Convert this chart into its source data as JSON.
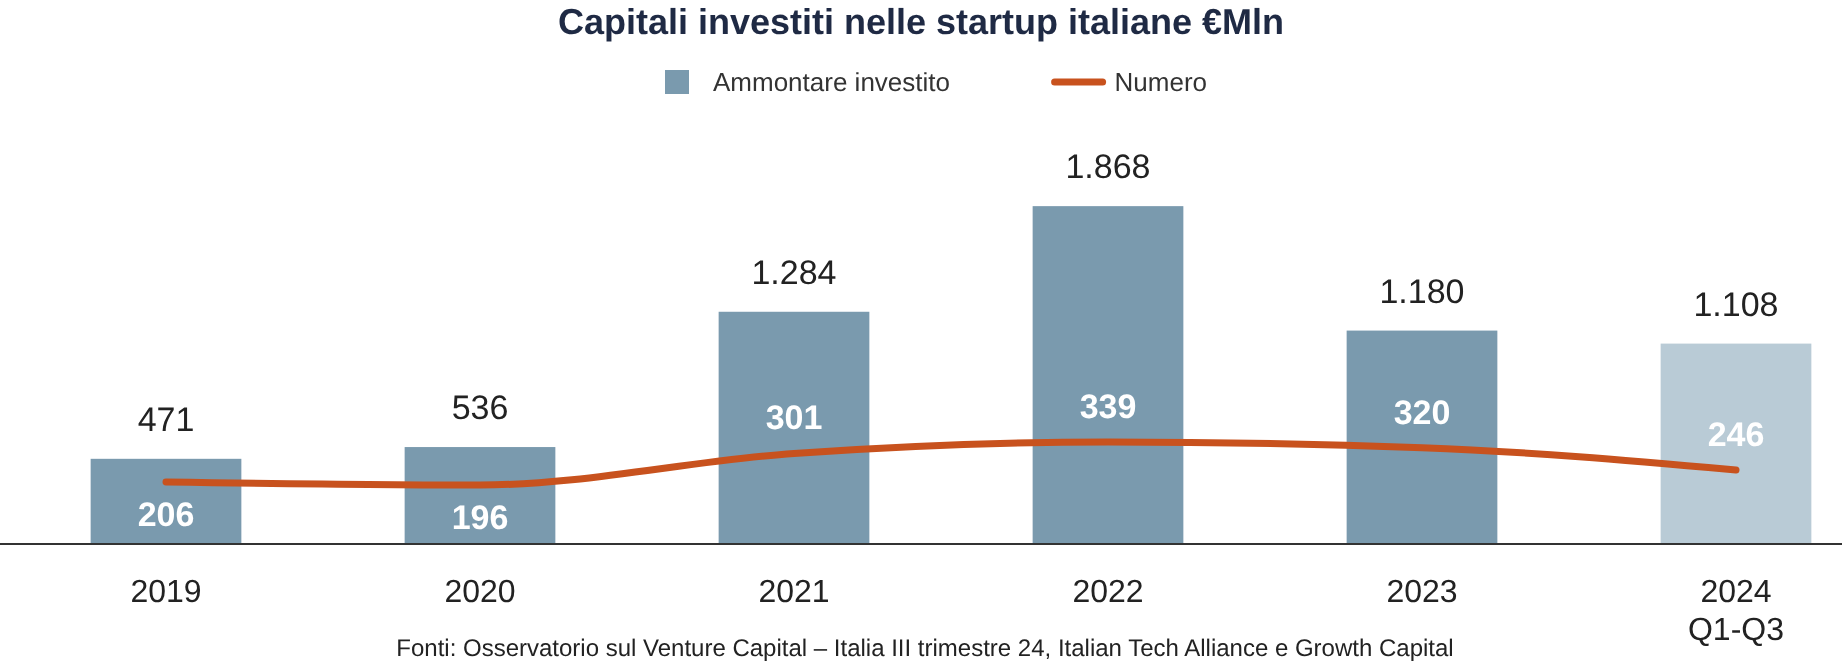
{
  "chart_data": {
    "type": "bar",
    "title": "Capitali investiti nelle startup italiane €Mln",
    "categories": [
      "2019",
      "2020",
      "2021",
      "2022",
      "2023",
      "2024\nQ1-Q3"
    ],
    "series": [
      {
        "name": "Ammontare investito",
        "color": "#7a9aae",
        "colors": [
          "#7a9aae",
          "#7a9aae",
          "#7a9aae",
          "#7a9aae",
          "#7a9aae",
          "#b9cbd6"
        ],
        "values": [
          471,
          536,
          1284,
          1868,
          1180,
          1108
        ],
        "value_labels": [
          "471",
          "536",
          "1.284",
          "1.868",
          "1.180",
          "1.108"
        ]
      },
      {
        "name": "Numero",
        "type": "line",
        "axis": "y2",
        "color": "#c8521e",
        "values": [
          206,
          196,
          301,
          339,
          320,
          246
        ]
      }
    ],
    "data_labels": true,
    "legend": "top",
    "tick_labels": "x",
    "marker": "none",
    "line_style": "solid",
    "annotations": [
      "Fonti: Osservatorio sul Venture Capital – Italia III trimestre 24, Italian Tech Alliance e Growth Capital"
    ]
  }
}
